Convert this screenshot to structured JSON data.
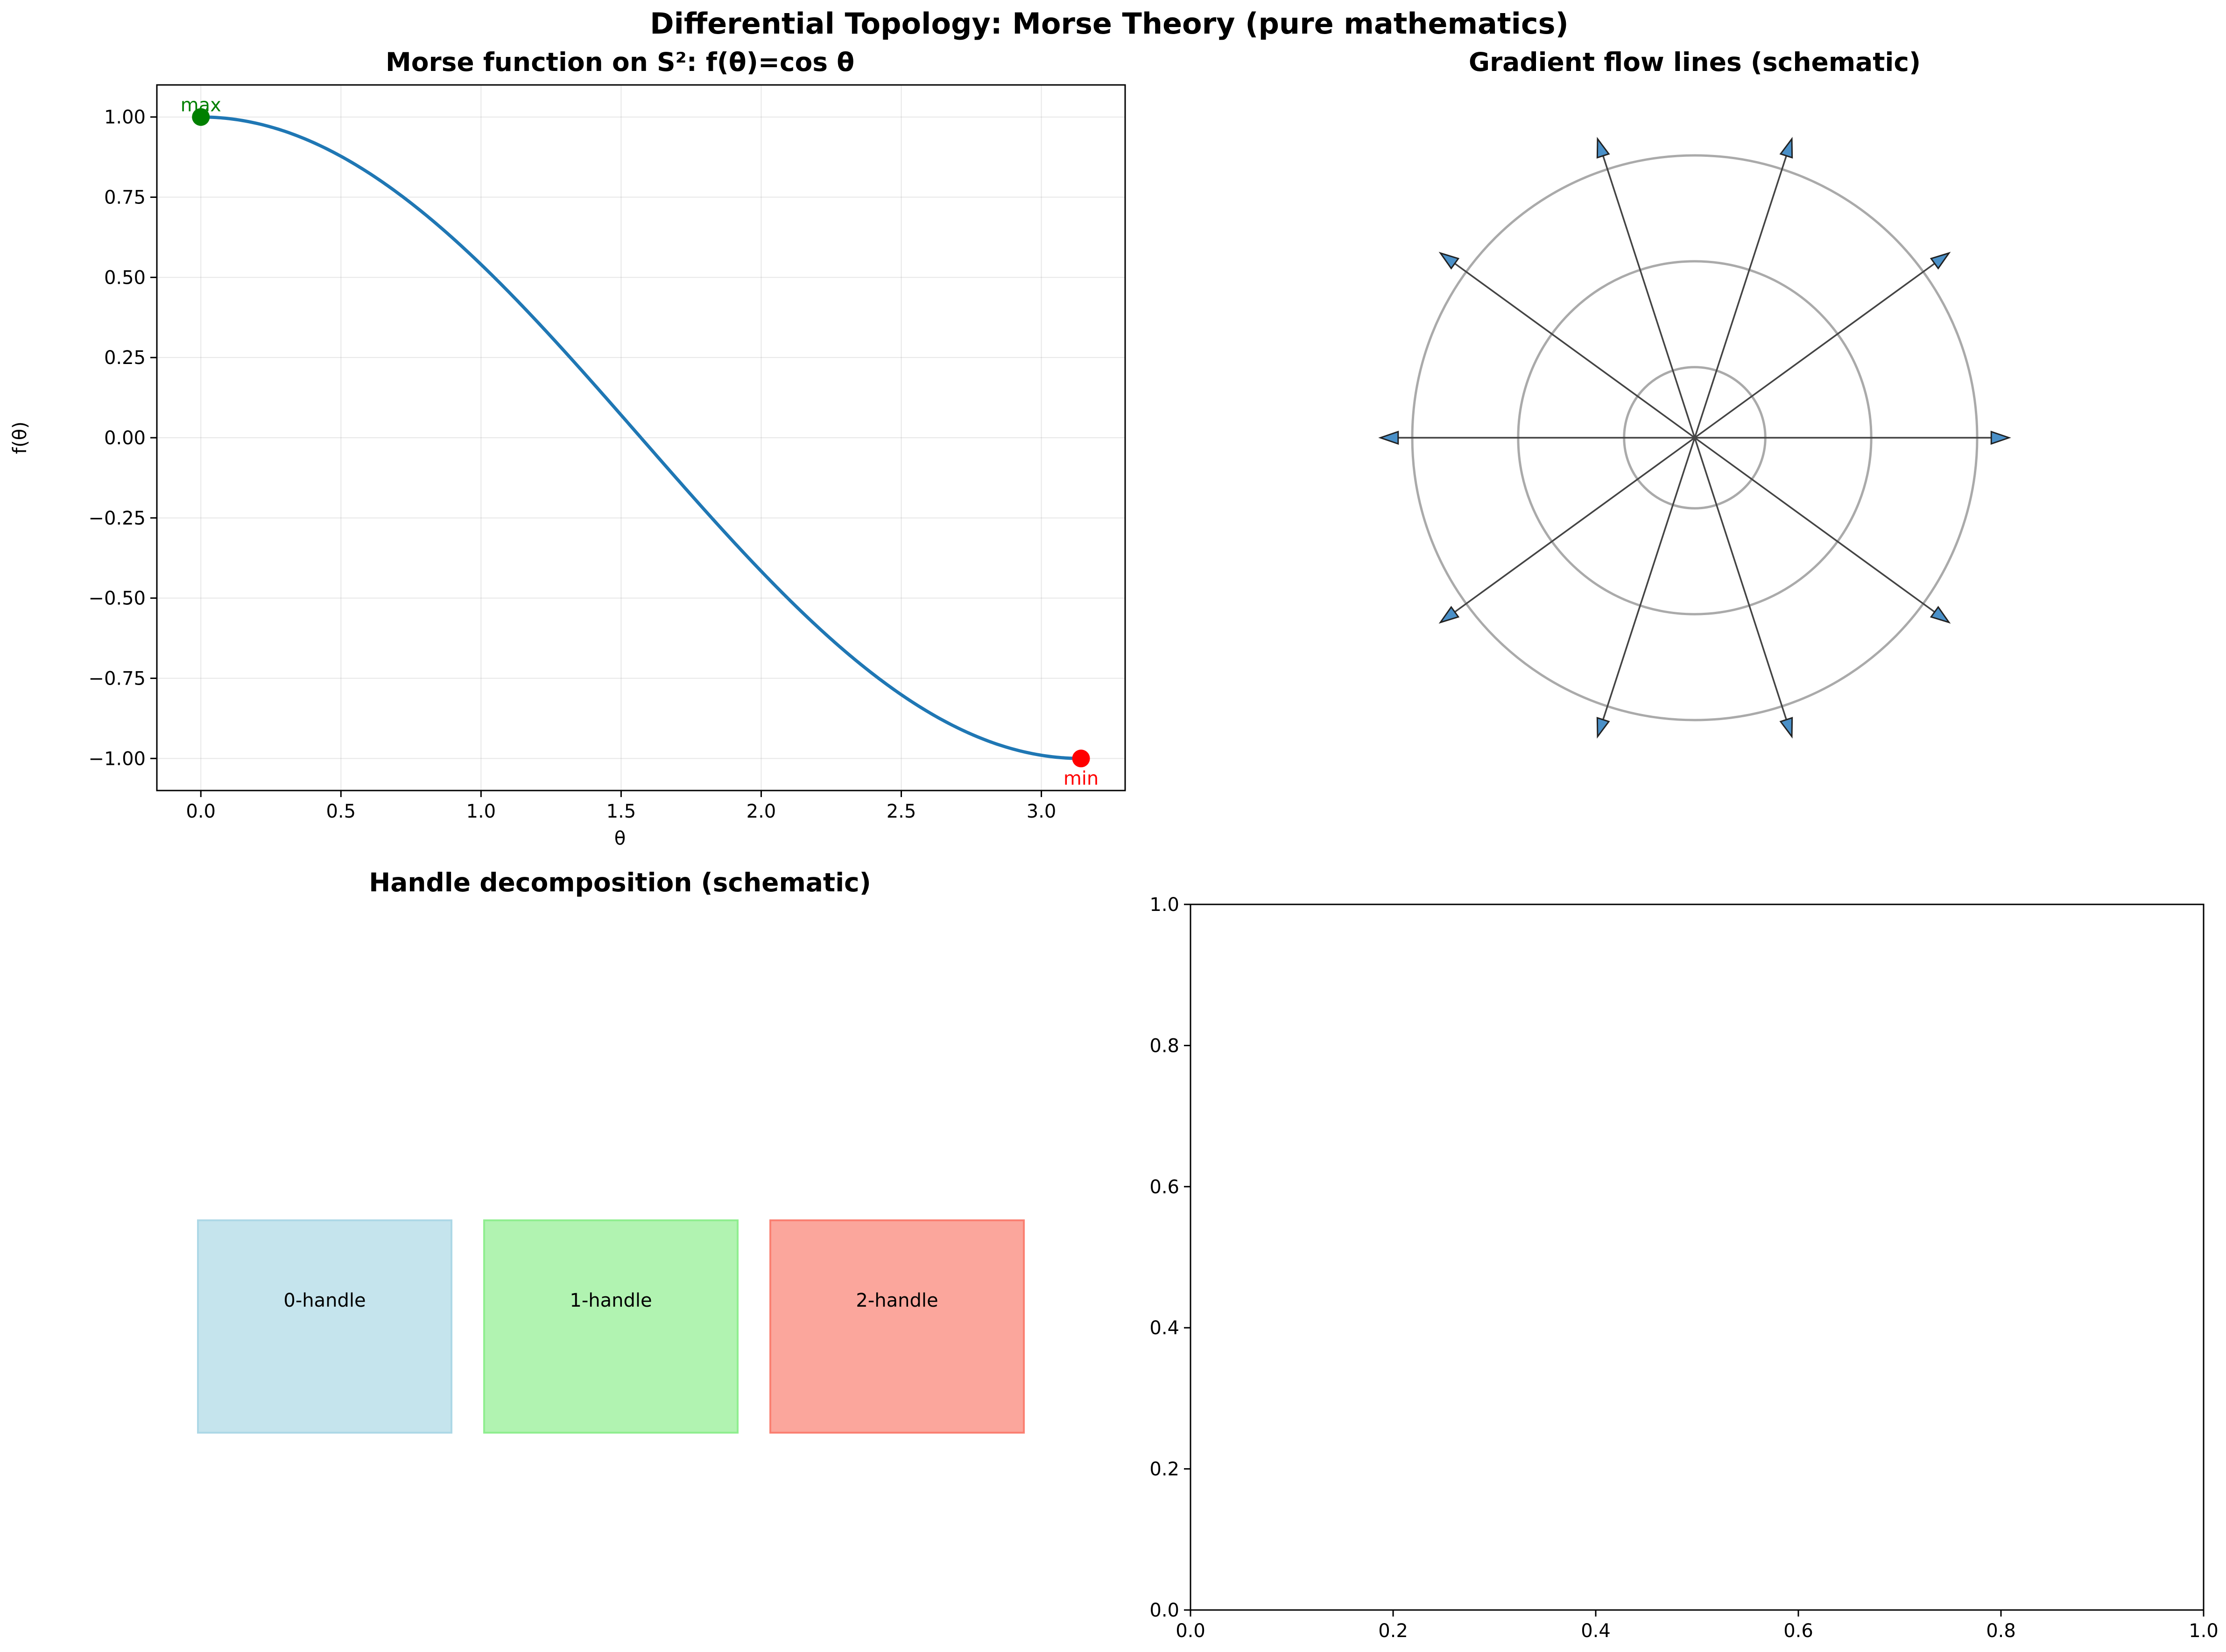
{
  "figure": {
    "suptitle": "Differential Topology: Morse Theory (pure mathematics)"
  },
  "chart_data": [
    {
      "type": "line",
      "title": "Morse function on S²: f(θ)=cos θ",
      "xlabel": "θ",
      "ylabel": "f(θ)",
      "xlim": [
        -0.157,
        3.299
      ],
      "ylim": [
        -1.1,
        1.1
      ],
      "grid": true,
      "x_ticks": [
        0.0,
        0.5,
        1.0,
        1.5,
        2.0,
        2.5,
        3.0
      ],
      "x_tick_labels": [
        "0.0",
        "0.5",
        "1.0",
        "1.5",
        "2.0",
        "2.5",
        "3.0"
      ],
      "y_ticks": [
        1.0,
        0.75,
        0.5,
        0.25,
        0.0,
        -0.25,
        -0.5,
        -0.75,
        -1.0
      ],
      "y_tick_labels": [
        "1.00",
        "0.75",
        "0.50",
        "0.25",
        "0.00",
        "−0.25",
        "−0.50",
        "−0.75",
        "−1.00"
      ],
      "series": [
        {
          "function": "cos(x)",
          "domain": [
            0,
            3.14159
          ],
          "color": "#1f77b4"
        }
      ],
      "points": [
        {
          "x": 0.0,
          "y": 1.0,
          "label": "max",
          "color": "#008000"
        },
        {
          "x": 3.14159,
          "y": -1.0,
          "label": "min",
          "color": "#ff0000"
        }
      ]
    },
    {
      "type": "diagram",
      "title": "Gradient flow lines (schematic)",
      "circle_radii": [
        0.25,
        0.625,
        1.0
      ],
      "arrow_angles_deg": [
        0,
        36,
        72,
        108,
        144,
        180,
        216,
        252,
        288,
        324
      ],
      "arrow_length": 1.05,
      "circle_color": "#aaaaaa",
      "line_color": "#444444",
      "arrow_color": "#4a90c8"
    },
    {
      "type": "diagram",
      "title": "Handle decomposition (schematic)",
      "handles": [
        {
          "label": "0-handle",
          "color": "#add8e6"
        },
        {
          "label": "1-handle",
          "color": "#90ee90"
        },
        {
          "label": "2-handle",
          "color": "#fa8072"
        }
      ]
    },
    {
      "type": "empty",
      "xlim": [
        0,
        1
      ],
      "ylim": [
        0,
        1
      ],
      "x_ticks": [
        0.0,
        0.2,
        0.4,
        0.6,
        0.8,
        1.0
      ],
      "x_tick_labels": [
        "0.0",
        "0.2",
        "0.4",
        "0.6",
        "0.8",
        "1.0"
      ],
      "y_ticks": [
        0.0,
        0.2,
        0.4,
        0.6,
        0.8,
        1.0
      ],
      "y_tick_labels": [
        "0.0",
        "0.2",
        "0.4",
        "0.6",
        "0.8",
        "1.0"
      ]
    }
  ]
}
